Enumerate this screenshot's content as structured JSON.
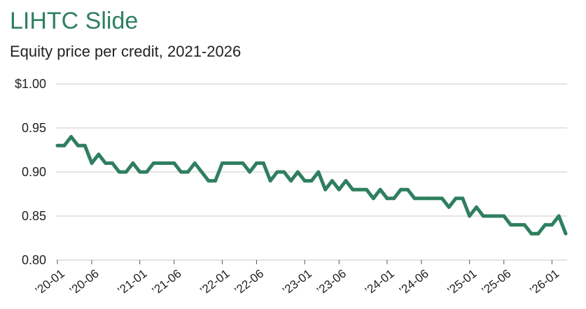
{
  "chart_data": {
    "type": "line",
    "title": "LIHTC Slide",
    "subtitle": "Equity price per credit, 2021-2026",
    "xlabel": "",
    "ylabel": "",
    "ylim": [
      0.8,
      1.0
    ],
    "y_ticks": [
      {
        "value": 1.0,
        "label": "$1.00"
      },
      {
        "value": 0.95,
        "label": "0.95"
      },
      {
        "value": 0.9,
        "label": "0.90"
      },
      {
        "value": 0.85,
        "label": "0.85"
      },
      {
        "value": 0.8,
        "label": "0.80"
      }
    ],
    "x_ticks": [
      {
        "index": 0,
        "label": "’20-01"
      },
      {
        "index": 5,
        "label": "’20-06"
      },
      {
        "index": 12,
        "label": "’21-01"
      },
      {
        "index": 17,
        "label": "’21-06"
      },
      {
        "index": 24,
        "label": "’22-01"
      },
      {
        "index": 29,
        "label": "’22-06"
      },
      {
        "index": 36,
        "label": "’23-01"
      },
      {
        "index": 41,
        "label": "’23-06"
      },
      {
        "index": 48,
        "label": "’24-01"
      },
      {
        "index": 53,
        "label": "’24-06"
      },
      {
        "index": 60,
        "label": "’25-01"
      },
      {
        "index": 65,
        "label": "’25-06"
      },
      {
        "index": 72,
        "label": "’26-01"
      }
    ],
    "grid": true,
    "line_color": "#2f7f5f",
    "series": [
      {
        "values": [
          0.93,
          0.93,
          0.94,
          0.93,
          0.93,
          0.91,
          0.92,
          0.91,
          0.91,
          0.9,
          0.9,
          0.91,
          0.9,
          0.9,
          0.91,
          0.91,
          0.91,
          0.91,
          0.9,
          0.9,
          0.91,
          0.9,
          0.89,
          0.89,
          0.91,
          0.91,
          0.91,
          0.91,
          0.9,
          0.91,
          0.91,
          0.89,
          0.9,
          0.9,
          0.89,
          0.9,
          0.89,
          0.89,
          0.9,
          0.88,
          0.89,
          0.88,
          0.89,
          0.88,
          0.88,
          0.88,
          0.87,
          0.88,
          0.87,
          0.87,
          0.88,
          0.88,
          0.87,
          0.87,
          0.87,
          0.87,
          0.87,
          0.86,
          0.87,
          0.87,
          0.85,
          0.86,
          0.85,
          0.85,
          0.85,
          0.85,
          0.84,
          0.84,
          0.84,
          0.83,
          0.83,
          0.84,
          0.84,
          0.85,
          0.83
        ]
      }
    ]
  }
}
